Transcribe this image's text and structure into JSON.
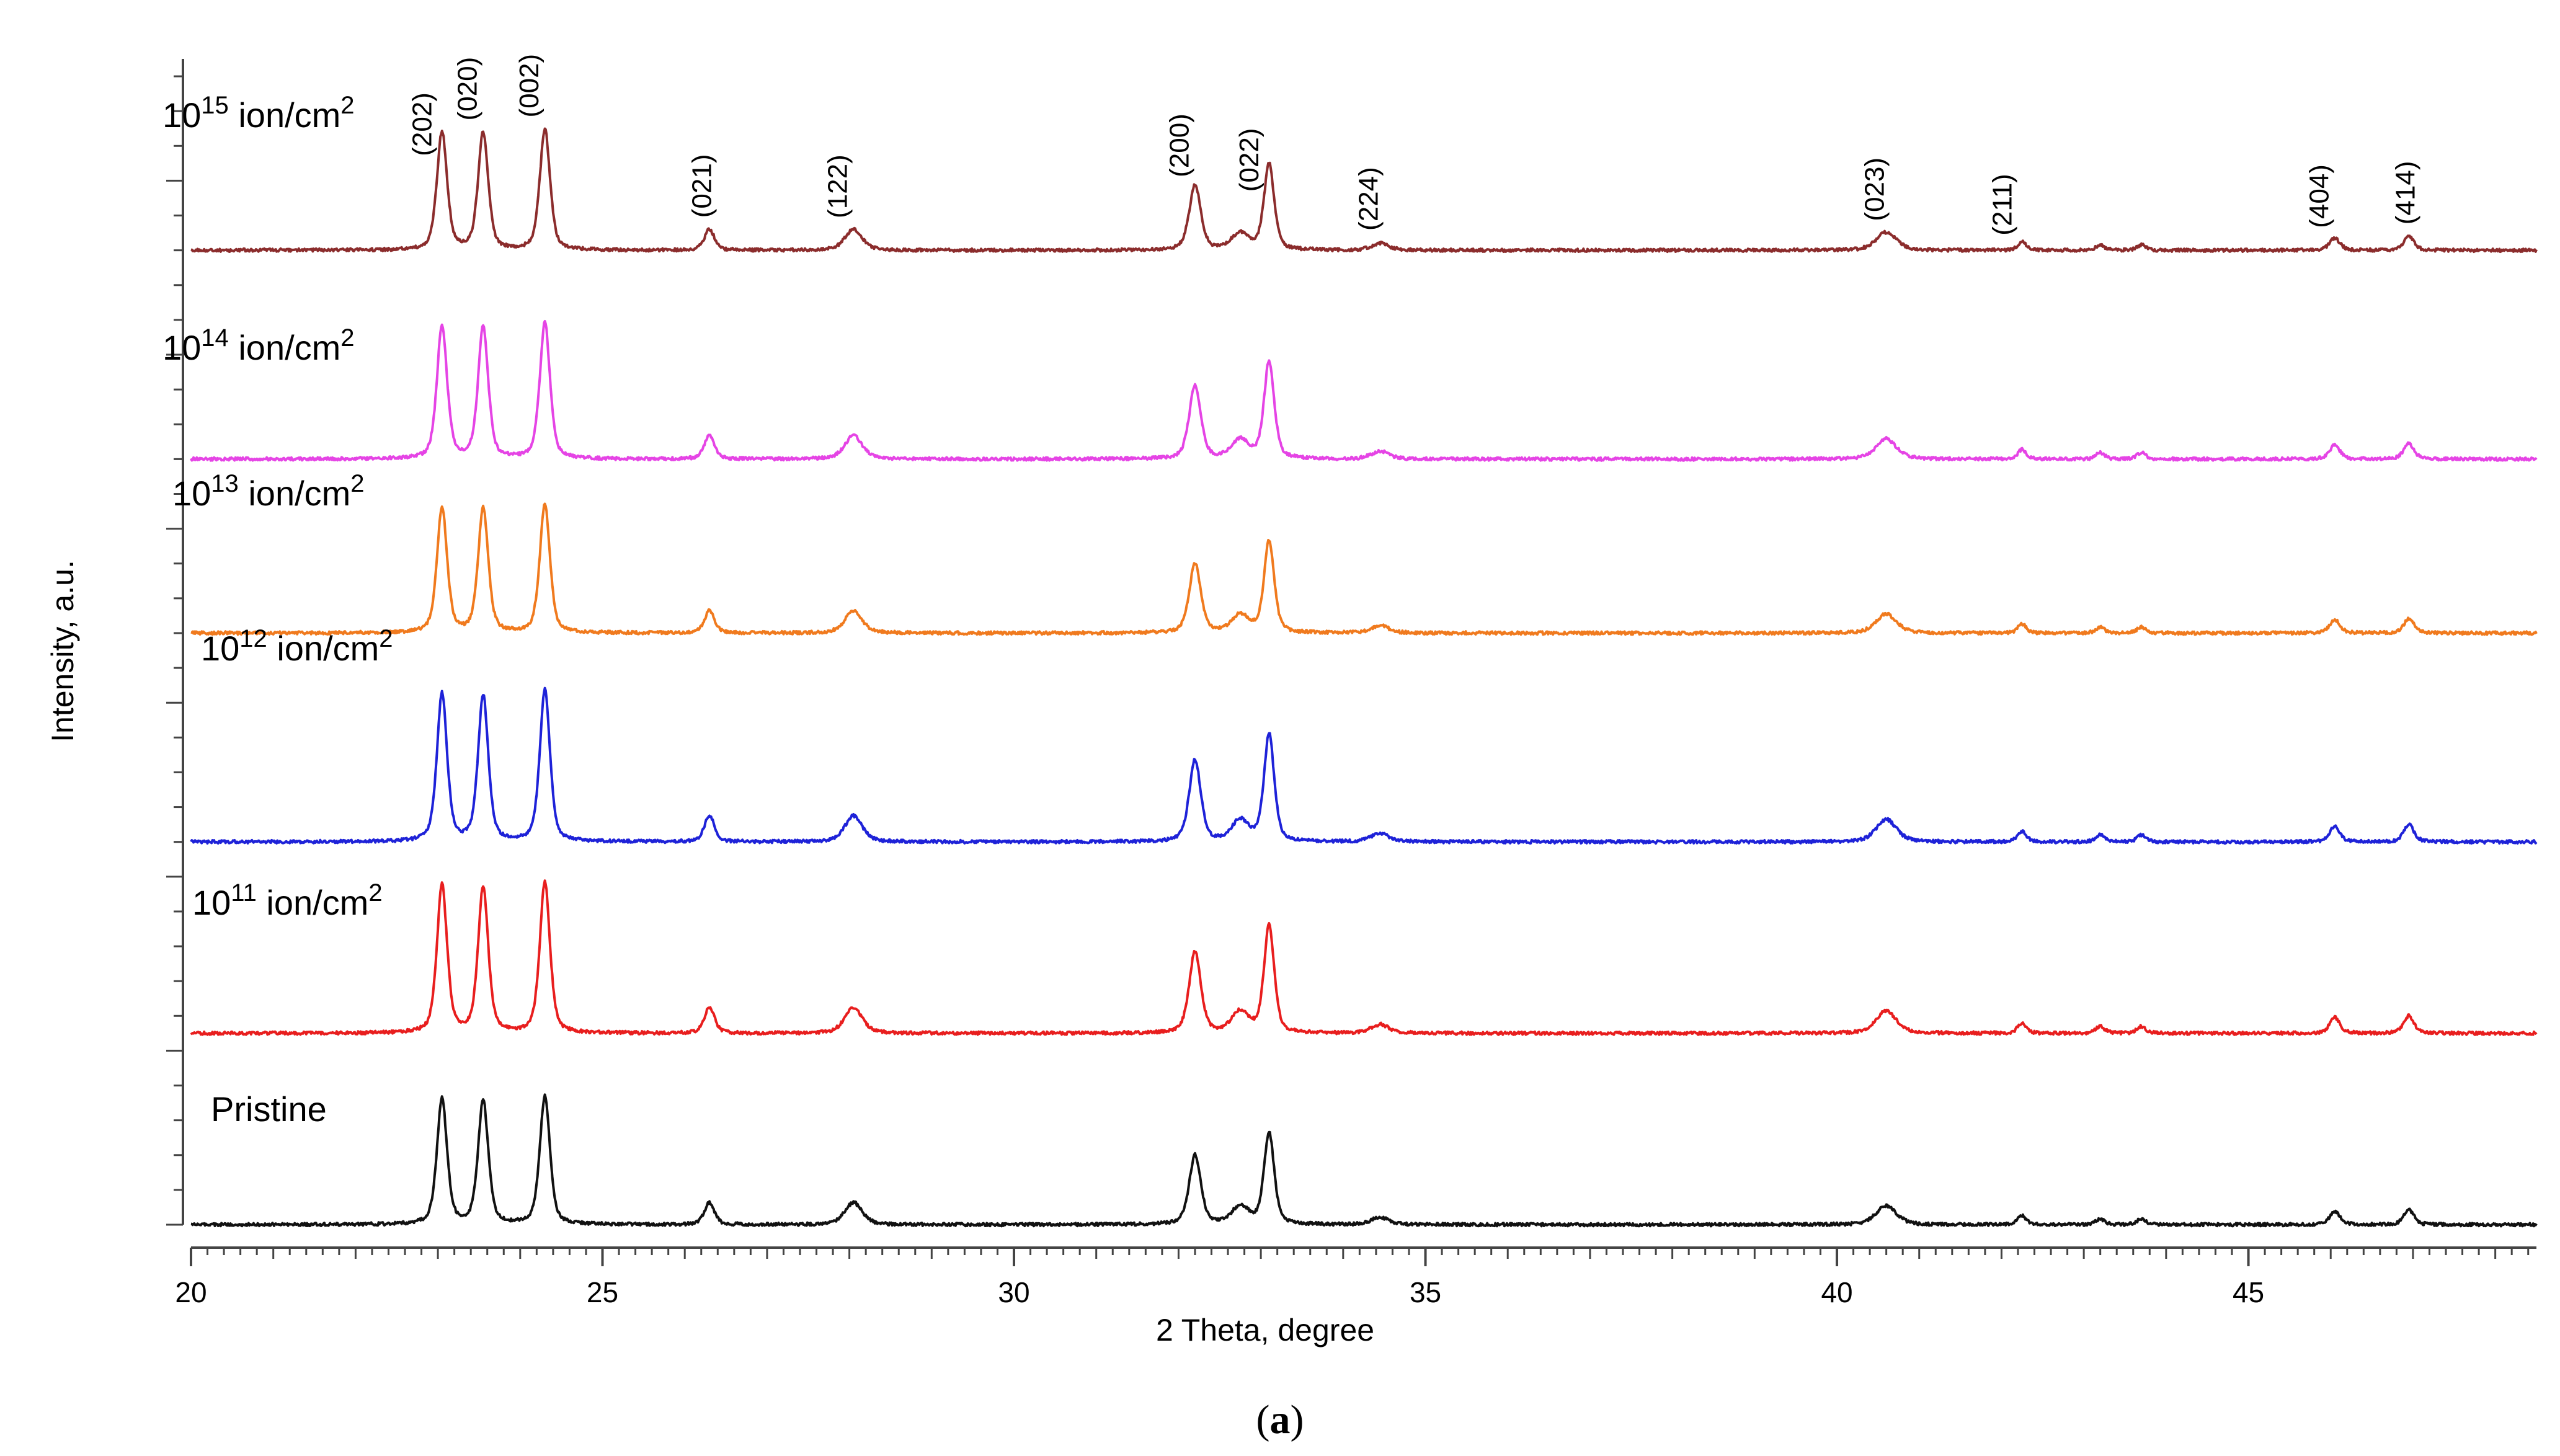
{
  "caption": {
    "open": "(",
    "letter": "a",
    "close": ")"
  },
  "chart_data": {
    "type": "line",
    "title": "",
    "xlabel": "2 Theta, degree",
    "ylabel": "Intensity, a.u.",
    "xlim": [
      20,
      48.5
    ],
    "x_ticks": [
      20,
      25,
      30,
      35,
      40,
      45
    ],
    "y_units": "offset a.u. (stacked; pristine baseline = 0, top tick = 6.7)",
    "grid": false,
    "series": [
      {
        "name": "10^15 ion/cm^2",
        "label": {
          "base": "10",
          "exp": "15",
          "unit": " ion/cm",
          "unit_exp": "2"
        },
        "color": "#8B2C2C",
        "offset": 5.6,
        "peak_scale": 0.8
      },
      {
        "name": "10^14 ion/cm^2",
        "label": {
          "base": "10",
          "exp": "14",
          "unit": " ion/cm",
          "unit_exp": "2"
        },
        "color": "#E544E5",
        "offset": 4.4,
        "peak_scale": 0.9
      },
      {
        "name": "10^13 ion/cm^2",
        "label": {
          "base": "10",
          "exp": "13",
          "unit": " ion/cm",
          "unit_exp": "2"
        },
        "color": "#F07A1E",
        "offset": 3.4,
        "peak_scale": 0.85
      },
      {
        "name": "10^12 ion/cm^2",
        "label": {
          "base": "10",
          "exp": "12",
          "unit": " ion/cm",
          "unit_exp": "2"
        },
        "color": "#1E22D8",
        "offset": 2.2,
        "peak_scale": 1.0
      },
      {
        "name": "10^11 ion/cm^2",
        "label": {
          "base": "10",
          "exp": "11",
          "unit": " ion/cm",
          "unit_exp": "2"
        },
        "color": "#E81E1E",
        "offset": 1.1,
        "peak_scale": 1.0
      },
      {
        "name": "Pristine",
        "label": {
          "text": "Pristine"
        },
        "color": "#111111",
        "offset": 0.0,
        "peak_scale": 0.85
      }
    ],
    "peaks": [
      {
        "x": 23.05,
        "h": 0.85,
        "w": 0.07
      },
      {
        "x": 23.55,
        "h": 0.84,
        "w": 0.07
      },
      {
        "x": 24.3,
        "h": 0.87,
        "w": 0.07
      },
      {
        "x": 26.3,
        "h": 0.15,
        "w": 0.07
      },
      {
        "x": 28.05,
        "h": 0.15,
        "w": 0.12
      },
      {
        "x": 32.2,
        "h": 0.47,
        "w": 0.08
      },
      {
        "x": 32.75,
        "h": 0.12,
        "w": 0.12
      },
      {
        "x": 33.1,
        "h": 0.62,
        "w": 0.07
      },
      {
        "x": 34.45,
        "h": 0.05,
        "w": 0.12
      },
      {
        "x": 40.6,
        "h": 0.13,
        "w": 0.14
      },
      {
        "x": 42.25,
        "h": 0.06,
        "w": 0.06
      },
      {
        "x": 43.2,
        "h": 0.04,
        "w": 0.06
      },
      {
        "x": 43.7,
        "h": 0.04,
        "w": 0.06
      },
      {
        "x": 46.05,
        "h": 0.09,
        "w": 0.07
      },
      {
        "x": 46.95,
        "h": 0.1,
        "w": 0.07
      }
    ],
    "annotations": [
      {
        "text": "(202)",
        "x": 22.8
      },
      {
        "text": "(020)",
        "x": 23.35
      },
      {
        "text": "(002)",
        "x": 24.1
      },
      {
        "text": "(021)",
        "x": 26.2
      },
      {
        "text": "(122)",
        "x": 27.85
      },
      {
        "text": "(200)",
        "x": 32.0
      },
      {
        "text": "(022)",
        "x": 32.85
      },
      {
        "text": "(224)",
        "x": 34.3
      },
      {
        "text": "(023)",
        "x": 40.45
      },
      {
        "text": "(211)",
        "x": 42.0
      },
      {
        "text": "(404)",
        "x": 45.85
      },
      {
        "text": "(414)",
        "x": 46.9
      }
    ]
  }
}
